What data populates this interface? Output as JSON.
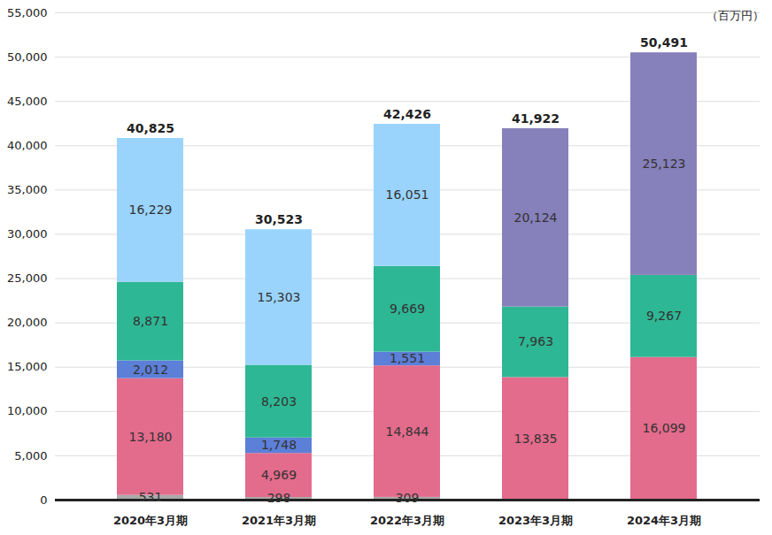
{
  "chart_data": {
    "type": "bar",
    "stacked": true,
    "data_labels": true,
    "grid": true,
    "ylabel": "（百万円）",
    "categories": [
      "2020年3月期",
      "2021年3月期",
      "2022年3月期",
      "2023年3月期",
      "2024年3月期"
    ],
    "series": [
      {
        "color": "#aaaaaa",
        "values": [
          531,
          298,
          309,
          null,
          null
        ],
        "value_labels": [
          "531",
          "298",
          "309",
          null,
          null
        ]
      },
      {
        "color": "#e36b8c",
        "values": [
          13180,
          4969,
          14844,
          13835,
          16099
        ],
        "value_labels": [
          "13,180",
          "4,969",
          "14,844",
          "13,835",
          "16,099"
        ]
      },
      {
        "color": "#5c7fd8",
        "values": [
          2012,
          1748,
          1551,
          null,
          null
        ],
        "value_labels": [
          "2,012",
          "1,748",
          "1,551",
          null,
          null
        ]
      },
      {
        "color": "#2eb794",
        "values": [
          8871,
          8203,
          9669,
          7963,
          9267
        ],
        "value_labels": [
          "8,871",
          "8,203",
          "9,669",
          "7,963",
          "9,267"
        ]
      },
      {
        "color": "#9ad4fd",
        "values": [
          16229,
          15303,
          16051,
          null,
          null
        ],
        "value_labels": [
          "16,229",
          "15,303",
          "16,051",
          null,
          null
        ]
      },
      {
        "color": "#8680bb",
        "values": [
          null,
          null,
          null,
          20124,
          25123
        ],
        "value_labels": [
          null,
          null,
          null,
          "20,124",
          "25,123"
        ]
      }
    ],
    "totals": [
      40825,
      30523,
      42426,
      41922,
      50491
    ],
    "total_labels": [
      "40,825",
      "30,523",
      "42,426",
      "41,922",
      "50,491"
    ],
    "ylim": [
      0,
      55000
    ],
    "yticks": [
      0,
      {
        "value": 5000,
        "label": "5,000"
      },
      {
        "value": 10000,
        "label": "10,000"
      },
      {
        "value": 15000,
        "label": "15,000"
      },
      {
        "value": 20000,
        "label": "20,000"
      },
      {
        "value": 25000,
        "label": "25,000"
      },
      {
        "value": 30000,
        "label": "30,000"
      },
      {
        "value": 35000,
        "label": "35,000"
      },
      {
        "value": 40000,
        "label": "40,000"
      },
      {
        "value": 45000,
        "label": "45,000"
      },
      {
        "value": 50000,
        "label": "50,000"
      },
      {
        "value": 55000,
        "label": "55,000"
      }
    ]
  }
}
